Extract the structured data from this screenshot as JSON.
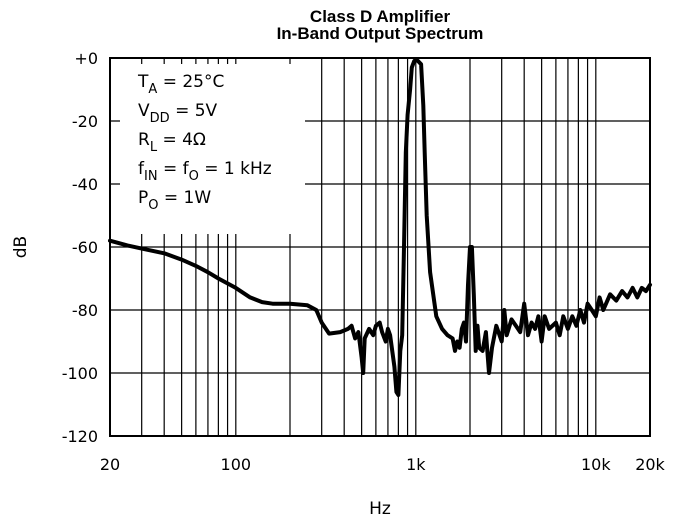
{
  "chart_data": {
    "type": "line",
    "title": "Class D Amplifier",
    "subtitle": "In-Band Output Spectrum",
    "xlabel": "Hz",
    "ylabel": "dB",
    "xscale": "log",
    "xlim": [
      20,
      20000
    ],
    "ylim": [
      -120,
      0
    ],
    "grid": true,
    "x_ticks": [
      {
        "value": 20,
        "label": "20"
      },
      {
        "value": 100,
        "label": "100"
      },
      {
        "value": 1000,
        "label": "1k"
      },
      {
        "value": 10000,
        "label": "10k"
      },
      {
        "value": 20000,
        "label": "20k"
      }
    ],
    "y_ticks": [
      {
        "value": 0,
        "label": "+0"
      },
      {
        "value": -20,
        "label": "-20"
      },
      {
        "value": -40,
        "label": "-40"
      },
      {
        "value": -60,
        "label": "-60"
      },
      {
        "value": -80,
        "label": "-80"
      },
      {
        "value": -100,
        "label": "-100"
      },
      {
        "value": -120,
        "label": "-120"
      }
    ],
    "annotations": [
      {
        "main": "T",
        "sub": "A",
        "rest": " = 25°C"
      },
      {
        "main": "V",
        "sub": "DD",
        "rest": " = 5V"
      },
      {
        "main": "R",
        "sub": "L",
        "rest": " = 4Ω"
      },
      {
        "main": "f",
        "sub": "IN",
        "rest": " = f",
        "sub2": "O",
        "rest2": " = 1 kHz"
      },
      {
        "main": "P",
        "sub": "O",
        "rest": " = 1W"
      }
    ],
    "series": [
      {
        "points": [
          [
            20,
            -58
          ],
          [
            25,
            -59.5
          ],
          [
            30,
            -60.5
          ],
          [
            40,
            -62
          ],
          [
            50,
            -64
          ],
          [
            60,
            -66
          ],
          [
            70,
            -68
          ],
          [
            80,
            -70
          ],
          [
            100,
            -73
          ],
          [
            120,
            -76
          ],
          [
            140,
            -77.5
          ],
          [
            160,
            -78
          ],
          [
            200,
            -78
          ],
          [
            250,
            -78.5
          ],
          [
            280,
            -80
          ],
          [
            300,
            -84
          ],
          [
            330,
            -87.5
          ],
          [
            380,
            -87
          ],
          [
            420,
            -86
          ],
          [
            440,
            -85
          ],
          [
            460,
            -89
          ],
          [
            480,
            -87
          ],
          [
            500,
            -95
          ],
          [
            510,
            -100
          ],
          [
            520,
            -89
          ],
          [
            550,
            -86
          ],
          [
            580,
            -88
          ],
          [
            600,
            -85
          ],
          [
            630,
            -84
          ],
          [
            650,
            -87
          ],
          [
            680,
            -90
          ],
          [
            700,
            -86
          ],
          [
            720,
            -88
          ],
          [
            760,
            -98
          ],
          [
            780,
            -106
          ],
          [
            800,
            -107
          ],
          [
            820,
            -93
          ],
          [
            840,
            -88
          ],
          [
            860,
            -60
          ],
          [
            880,
            -30
          ],
          [
            900,
            -18
          ],
          [
            930,
            -10
          ],
          [
            950,
            -3
          ],
          [
            980,
            -1
          ],
          [
            1000,
            -0.5
          ],
          [
            1030,
            -1
          ],
          [
            1070,
            -2
          ],
          [
            1100,
            -15
          ],
          [
            1120,
            -30
          ],
          [
            1150,
            -50
          ],
          [
            1200,
            -68
          ],
          [
            1300,
            -82
          ],
          [
            1400,
            -86
          ],
          [
            1500,
            -88
          ],
          [
            1600,
            -89
          ],
          [
            1650,
            -93
          ],
          [
            1700,
            -90
          ],
          [
            1750,
            -92
          ],
          [
            1800,
            -86
          ],
          [
            1850,
            -84
          ],
          [
            1900,
            -90
          ],
          [
            1950,
            -72
          ],
          [
            2000,
            -60
          ],
          [
            2050,
            -60
          ],
          [
            2100,
            -75
          ],
          [
            2150,
            -93
          ],
          [
            2200,
            -85
          ],
          [
            2250,
            -92
          ],
          [
            2350,
            -93
          ],
          [
            2450,
            -87
          ],
          [
            2550,
            -100
          ],
          [
            2650,
            -92
          ],
          [
            2800,
            -85
          ],
          [
            3000,
            -90
          ],
          [
            3100,
            -80
          ],
          [
            3200,
            -88
          ],
          [
            3400,
            -83
          ],
          [
            3600,
            -85
          ],
          [
            3800,
            -87
          ],
          [
            4000,
            -78
          ],
          [
            4200,
            -88
          ],
          [
            4400,
            -84
          ],
          [
            4600,
            -86
          ],
          [
            4800,
            -82
          ],
          [
            5000,
            -90
          ],
          [
            5200,
            -82
          ],
          [
            5500,
            -86
          ],
          [
            6000,
            -84
          ],
          [
            6300,
            -88
          ],
          [
            6600,
            -82
          ],
          [
            7000,
            -86
          ],
          [
            7400,
            -82
          ],
          [
            7800,
            -85
          ],
          [
            8200,
            -80
          ],
          [
            8600,
            -84
          ],
          [
            9000,
            -78
          ],
          [
            9500,
            -80
          ],
          [
            10000,
            -82
          ],
          [
            10500,
            -76
          ],
          [
            11000,
            -80
          ],
          [
            12000,
            -75
          ],
          [
            13000,
            -77
          ],
          [
            14000,
            -74
          ],
          [
            15000,
            -76
          ],
          [
            16000,
            -73
          ],
          [
            17000,
            -76
          ],
          [
            18000,
            -73
          ],
          [
            19000,
            -74
          ],
          [
            20000,
            -72
          ]
        ]
      }
    ]
  }
}
